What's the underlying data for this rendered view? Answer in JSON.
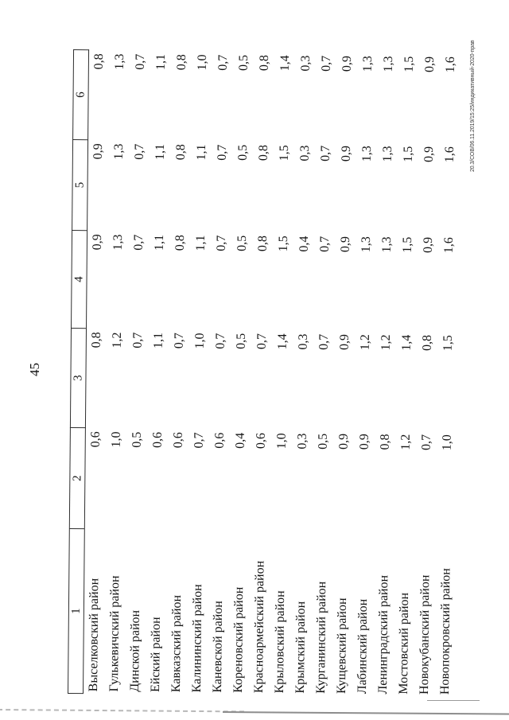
{
  "page": {
    "number": "45",
    "edge_note": "20.3/СОВ/06.11.2019/15:25/индикативный-2020-прав"
  },
  "table": {
    "column_headers": [
      "1",
      "2",
      "3",
      "4",
      "5",
      "6"
    ],
    "rows": [
      {
        "name": "Выселковский район",
        "values": [
          "0,6",
          "0,8",
          "0,9",
          "0,9",
          "0,8"
        ]
      },
      {
        "name": "Гулькевичский район",
        "values": [
          "1,0",
          "1,2",
          "1,3",
          "1,3",
          "1,3"
        ]
      },
      {
        "name": "Динской район",
        "values": [
          "0,5",
          "0,7",
          "0,7",
          "0,7",
          "0,7"
        ]
      },
      {
        "name": "Ейский район",
        "values": [
          "0,6",
          "1,1",
          "1,1",
          "1,1",
          "1,1"
        ]
      },
      {
        "name": "Кавказский район",
        "values": [
          "0,6",
          "0,7",
          "0,8",
          "0,8",
          "0,8"
        ]
      },
      {
        "name": "Калининский район",
        "values": [
          "0,7",
          "1,0",
          "1,1",
          "1,1",
          "1,0"
        ]
      },
      {
        "name": "Каневской район",
        "values": [
          "0,6",
          "0,7",
          "0,7",
          "0,7",
          "0,7"
        ]
      },
      {
        "name": "Кореновский район",
        "values": [
          "0,4",
          "0,5",
          "0,5",
          "0,5",
          "0,5"
        ]
      },
      {
        "name": "Красноармейский район",
        "values": [
          "0,6",
          "0,7",
          "0,8",
          "0,8",
          "0,8"
        ]
      },
      {
        "name": "Крыловский район",
        "values": [
          "1,0",
          "1,4",
          "1,5",
          "1,5",
          "1,4"
        ]
      },
      {
        "name": "Крымский район",
        "values": [
          "0,3",
          "0,3",
          "0,4",
          "0,3",
          "0,3"
        ]
      },
      {
        "name": "Курганинский район",
        "values": [
          "0,5",
          "0,7",
          "0,7",
          "0,7",
          "0,7"
        ]
      },
      {
        "name": "Кущевский район",
        "values": [
          "0,9",
          "0,9",
          "0,9",
          "0,9",
          "0,9"
        ]
      },
      {
        "name": "Лабинский район",
        "values": [
          "0,9",
          "1,2",
          "1,3",
          "1,3",
          "1,3"
        ]
      },
      {
        "name": "Ленинградский район",
        "values": [
          "0,8",
          "1,2",
          "1,3",
          "1,3",
          "1,3"
        ]
      },
      {
        "name": "Мостовский район",
        "values": [
          "1,2",
          "1,4",
          "1,5",
          "1,5",
          "1,5"
        ]
      },
      {
        "name": "Новокубанский район",
        "values": [
          "0,7",
          "0,8",
          "0,9",
          "0,9",
          "0,9"
        ]
      },
      {
        "name": "Новопокровский район",
        "values": [
          "1,0",
          "1,5",
          "1,6",
          "1,6",
          "1,6"
        ]
      }
    ]
  }
}
